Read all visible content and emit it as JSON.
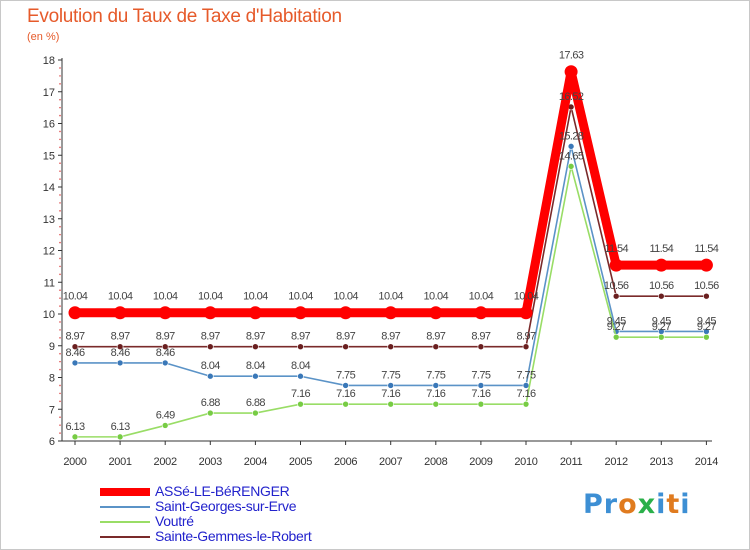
{
  "title": "Evolution du Taux de Taxe d'Habitation",
  "subtitle": "(en %)",
  "logo": {
    "text": "Proxiti",
    "letter_colors": [
      "#3d8fd4",
      "#3d8fd4",
      "#e07b1f",
      "#2ab04a",
      "#3d8fd4",
      "#e07b1f",
      "#3d8fd4"
    ]
  },
  "chart_data": {
    "type": "line",
    "x": [
      "2000",
      "2001",
      "2002",
      "2003",
      "2004",
      "2005",
      "2006",
      "2007",
      "2008",
      "2009",
      "2010",
      "2011",
      "2012",
      "2013",
      "2014"
    ],
    "yticks": [
      "6",
      "7",
      "8",
      "9",
      "10",
      "11",
      "12",
      "13",
      "14",
      "15",
      "16",
      "17",
      "18"
    ],
    "ylim": [
      6,
      18
    ],
    "grid": false,
    "legend_position": "bottom-left",
    "series": [
      {
        "name": "ASSé-LE-BéRENGER",
        "color": "#ff0000",
        "values": [
          10.04,
          10.04,
          10.04,
          10.04,
          10.04,
          10.04,
          10.04,
          10.04,
          10.04,
          10.04,
          10.04,
          17.63,
          11.54,
          11.54,
          11.54
        ],
        "labels": [
          "10.04",
          "10.04",
          "10.04",
          "10.04",
          "10.04",
          "10.04",
          "10.04",
          "10.04",
          "10.04",
          "10.04",
          "10.04",
          "17.63",
          "11.54",
          "11.54",
          "11.54"
        ]
      },
      {
        "name": "Saint-Georges-sur-Erve",
        "color": "#5b93c7",
        "values": [
          8.46,
          8.46,
          8.46,
          8.04,
          8.04,
          8.04,
          7.75,
          7.75,
          7.75,
          7.75,
          7.75,
          15.28,
          9.45,
          9.45,
          9.45
        ],
        "labels": [
          "8.46",
          "8.46",
          "8.46",
          "8.04",
          "8.04",
          "8.04",
          "7.75",
          "7.75",
          "7.75",
          "7.75",
          "7.75",
          "15.28",
          "9.45",
          "9.45",
          "9.45"
        ]
      },
      {
        "name": "Voutré",
        "color": "#99dd66",
        "values": [
          6.13,
          6.13,
          6.49,
          6.88,
          6.88,
          7.16,
          7.16,
          7.16,
          7.16,
          7.16,
          7.16,
          14.65,
          9.27,
          9.27,
          9.27
        ],
        "labels": [
          "6.13",
          "6.13",
          "6.49",
          "6.88",
          "6.88",
          "7.16",
          "7.16",
          "7.16",
          "7.16",
          "7.16",
          "7.16",
          "14.65",
          "9.27",
          "9.27",
          "9.27"
        ]
      },
      {
        "name": "Sainte-Gemmes-le-Robert",
        "color": "#7a2a2a",
        "values": [
          8.97,
          8.97,
          8.97,
          8.97,
          8.97,
          8.97,
          8.97,
          8.97,
          8.97,
          8.97,
          8.97,
          16.52,
          10.56,
          10.56,
          10.56
        ],
        "labels": [
          "8.97",
          "8.97",
          "8.97",
          "8.97",
          "8.97",
          "8.97",
          "8.97",
          "8.97",
          "8.97",
          "8.97",
          "8.97",
          "16.52",
          "10.56",
          "10.56",
          "10.56"
        ]
      }
    ]
  }
}
